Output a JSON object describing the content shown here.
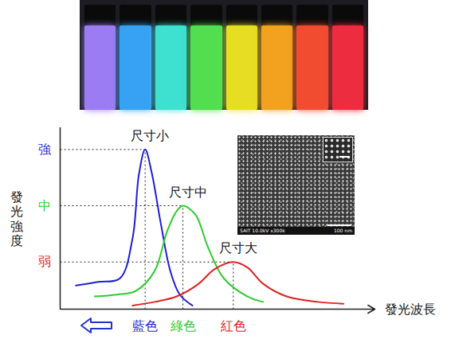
{
  "chart_data": {
    "type": "line",
    "xlabel": "發光波長",
    "ylabel": "發光強度",
    "xlim": [
      0,
      100
    ],
    "ylim": [
      0,
      100
    ],
    "xticks": [
      {
        "value": 27,
        "label": "藍色"
      },
      {
        "value": 39,
        "label": "綠色"
      },
      {
        "value": 55,
        "label": "紅色"
      }
    ],
    "yticks": [
      {
        "value": 88,
        "label": "強"
      },
      {
        "value": 57,
        "label": "中"
      },
      {
        "value": 26,
        "label": "弱"
      }
    ],
    "grid": false,
    "series": [
      {
        "name": "尺寸小",
        "color": "#1f1fd6",
        "x": [
          5,
          12,
          19,
          23,
          25,
          27,
          29,
          32,
          35,
          38,
          42
        ],
        "values": [
          13,
          15,
          17,
          39,
          74,
          88,
          76,
          47,
          21,
          8,
          2
        ]
      },
      {
        "name": "尺寸中",
        "color": "#2ecc2e",
        "x": [
          11,
          18,
          24,
          30,
          34,
          37,
          39,
          43,
          47,
          52,
          59.5,
          64.5
        ],
        "values": [
          7,
          8,
          10,
          21,
          43,
          54,
          57,
          52,
          34,
          17,
          7,
          4
        ]
      },
      {
        "name": "尺寸大",
        "color": "#dd2222",
        "x": [
          23,
          30,
          37,
          44,
          49,
          55,
          59.5,
          64.5,
          72,
          82,
          90
        ],
        "values": [
          2,
          4,
          7,
          14,
          22,
          26,
          23,
          14,
          7,
          4,
          3
        ]
      }
    ],
    "inset_texts": [
      "SAIT 10.0kV x300k",
      "100 nm"
    ]
  }
}
